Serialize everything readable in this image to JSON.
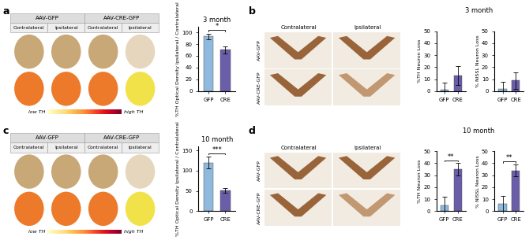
{
  "image_panels": [
    {
      "label": "a",
      "groups": [
        "AAV-GFP",
        "AAV-CRE-GFP"
      ],
      "columns": [
        "Contralateral",
        "Ipsilateral",
        "Contralateral",
        "Ipsilateral"
      ],
      "scale_low": "low TH",
      "scale_high": "high TH"
    },
    {
      "label": "b",
      "columns": [
        "Contralateral",
        "Ipsilateral"
      ],
      "rows": [
        "AAV-GFP",
        "AAV-CRE-GFP"
      ],
      "charts_title": "3 month"
    },
    {
      "label": "c",
      "groups": [
        "AAV-GFP",
        "AAV-CRE-GFP"
      ],
      "columns": [
        "Contralateral",
        "Ipsilateral",
        "Contralateral",
        "Ipsilateral"
      ],
      "scale_low": "low TH",
      "scale_high": "high TH"
    },
    {
      "label": "d",
      "columns": [
        "Contralateral",
        "Ipsilateral"
      ],
      "rows": [
        "AAV-GFP",
        "AAV-CRE-GFP"
      ],
      "charts_title": "10 month"
    }
  ],
  "chart_data": [
    {
      "type": "bar",
      "title": "3 month",
      "ylabel": "%TH Optical Density Ipsilateral / Contralateral",
      "categories": [
        "GFP",
        "CRE"
      ],
      "values": [
        93,
        70
      ],
      "error": [
        5,
        6
      ],
      "colors": [
        "#8fb9dd",
        "#6b5ea8"
      ],
      "ylim": [
        0,
        110
      ],
      "yticks": [
        0,
        20,
        40,
        60,
        80,
        100
      ],
      "significance": "*"
    },
    {
      "type": "bar",
      "ylabel": "%TH Neuron Loss",
      "categories": [
        "GFP",
        "CRE"
      ],
      "values": [
        1,
        13
      ],
      "error": [
        6,
        8
      ],
      "colors": [
        "#8fb9dd",
        "#6b5ea8"
      ],
      "ylim": [
        0,
        50
      ],
      "yticks": [
        0,
        10,
        20,
        30,
        40,
        50
      ]
    },
    {
      "type": "bar",
      "ylabel": "% NISSL Neuron Loss",
      "categories": [
        "GFP",
        "CRE"
      ],
      "values": [
        2,
        9
      ],
      "error": [
        6,
        7
      ],
      "colors": [
        "#8fb9dd",
        "#6b5ea8"
      ],
      "ylim": [
        0,
        50
      ],
      "yticks": [
        0,
        10,
        20,
        30,
        40,
        50
      ]
    },
    {
      "type": "bar",
      "title": "10 month",
      "ylabel": "%TH Optical Density Ipsilateral / Contralateral",
      "categories": [
        "GFP",
        "CRE"
      ],
      "values": [
        120,
        52
      ],
      "error": [
        15,
        6
      ],
      "colors": [
        "#8fb9dd",
        "#6b5ea8"
      ],
      "ylim": [
        0,
        160
      ],
      "yticks": [
        0,
        50,
        100,
        150
      ],
      "significance": "***"
    },
    {
      "type": "bar",
      "ylabel": "%TH Neuron Loss",
      "categories": [
        "GFP",
        "CRE"
      ],
      "values": [
        5,
        35
      ],
      "error": [
        7,
        5
      ],
      "colors": [
        "#8fb9dd",
        "#6b5ea8"
      ],
      "ylim": [
        0,
        50
      ],
      "yticks": [
        0,
        10,
        20,
        30,
        40,
        50
      ],
      "significance": "**"
    },
    {
      "type": "bar",
      "ylabel": "% NISSL Neuron Loss",
      "categories": [
        "GFP",
        "CRE"
      ],
      "values": [
        6,
        34
      ],
      "error": [
        7,
        5
      ],
      "colors": [
        "#8fb9dd",
        "#6b5ea8"
      ],
      "ylim": [
        0,
        50
      ],
      "yticks": [
        0,
        10,
        20,
        30,
        40,
        50
      ],
      "significance": "**"
    }
  ]
}
